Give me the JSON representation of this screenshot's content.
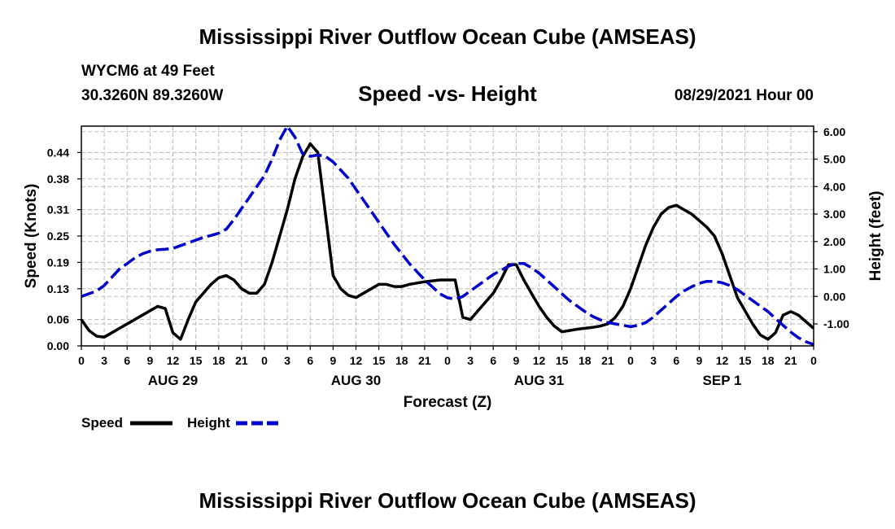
{
  "header": {
    "title": "Mississippi River Outflow Ocean Cube (AMSEAS)",
    "station": "WYCM6 at 49 Feet",
    "coords": "30.3260N  89.3260W",
    "datetime": "08/29/2021 Hour 00"
  },
  "footer": {
    "title": "Mississippi River Outflow Ocean Cube (AMSEAS)"
  },
  "legend": {
    "speed_label": "Speed",
    "height_label": "Height"
  },
  "colors": {
    "speed": "#000000",
    "height": "#0000cc",
    "grid": "#bbbbbb"
  },
  "chart_data": {
    "type": "line",
    "title": "Speed -vs- Height",
    "xlabel": "Forecast (Z)",
    "ylabel": "Speed (Knots)",
    "y2label": "Height (feet)",
    "xlim": [
      0,
      96
    ],
    "ylim": [
      0,
      0.5
    ],
    "y2lim": [
      -1.8,
      6.2
    ],
    "x_ticks": [
      0,
      3,
      6,
      9,
      12,
      15,
      18,
      21,
      24,
      27,
      30,
      33,
      36,
      39,
      42,
      45,
      48,
      51,
      54,
      57,
      60,
      63,
      66,
      69,
      72,
      75,
      78,
      81,
      84,
      87,
      90,
      93,
      96
    ],
    "x_tick_labels": [
      "0",
      "3",
      "6",
      "9",
      "12",
      "15",
      "18",
      "21",
      "0",
      "3",
      "6",
      "9",
      "12",
      "15",
      "18",
      "21",
      "0",
      "3",
      "6",
      "9",
      "12",
      "15",
      "18",
      "21",
      "0",
      "3",
      "6",
      "9",
      "12",
      "15",
      "18",
      "21",
      "0"
    ],
    "date_labels": [
      {
        "label": "AUG 29",
        "x": 12
      },
      {
        "label": "AUG 30",
        "x": 36
      },
      {
        "label": "AUG 31",
        "x": 60
      },
      {
        "label": "SEP 1",
        "x": 84
      }
    ],
    "y_ticks": [
      0.0,
      0.06,
      0.13,
      0.19,
      0.25,
      0.31,
      0.38,
      0.44
    ],
    "y_tick_labels": [
      "0.00",
      "0.06",
      "0.13",
      "0.19",
      "0.25",
      "0.31",
      "0.38",
      "0.44"
    ],
    "y2_ticks": [
      -1,
      0,
      1,
      2,
      3,
      4,
      5,
      6
    ],
    "y2_tick_labels": [
      "-1.00",
      "0.00",
      "1.00",
      "2.00",
      "3.00",
      "4.00",
      "5.00",
      "6.00"
    ],
    "series": [
      {
        "name": "Speed",
        "axis": "left",
        "x": [
          0,
          1,
          2,
          3,
          4,
          5,
          6,
          7,
          8,
          9,
          10,
          11,
          12,
          13,
          14,
          15,
          16,
          17,
          18,
          19,
          20,
          21,
          22,
          23,
          24,
          25,
          26,
          27,
          28,
          29,
          30,
          31,
          32,
          33,
          34,
          35,
          36,
          37,
          38,
          39,
          40,
          41,
          42,
          43,
          44,
          45,
          46,
          47,
          48,
          49,
          50,
          51,
          52,
          53,
          54,
          55,
          56,
          57,
          58,
          59,
          60,
          61,
          62,
          63,
          64,
          65,
          66,
          67,
          68,
          69,
          70,
          71,
          72,
          73,
          74,
          75,
          76,
          77,
          78,
          79,
          80,
          81,
          82,
          83,
          84,
          85,
          86,
          87,
          88,
          89,
          90,
          91,
          92,
          93,
          94,
          95,
          96
        ],
        "values": [
          0.06,
          0.035,
          0.022,
          0.02,
          0.03,
          0.04,
          0.05,
          0.06,
          0.07,
          0.08,
          0.09,
          0.085,
          0.03,
          0.015,
          0.06,
          0.1,
          0.12,
          0.14,
          0.155,
          0.16,
          0.15,
          0.13,
          0.12,
          0.12,
          0.14,
          0.19,
          0.25,
          0.31,
          0.38,
          0.43,
          0.46,
          0.44,
          0.3,
          0.16,
          0.13,
          0.115,
          0.11,
          0.12,
          0.13,
          0.14,
          0.14,
          0.135,
          0.135,
          0.14,
          0.143,
          0.146,
          0.148,
          0.15,
          0.15,
          0.15,
          0.065,
          0.06,
          0.08,
          0.1,
          0.12,
          0.15,
          0.185,
          0.185,
          0.15,
          0.12,
          0.09,
          0.065,
          0.045,
          0.032,
          0.035,
          0.038,
          0.04,
          0.042,
          0.045,
          0.05,
          0.065,
          0.09,
          0.13,
          0.18,
          0.23,
          0.27,
          0.3,
          0.315,
          0.32,
          0.31,
          0.3,
          0.285,
          0.27,
          0.25,
          0.21,
          0.16,
          0.11,
          0.08,
          0.05,
          0.025,
          0.015,
          0.03,
          0.07,
          0.078,
          0.07,
          0.055,
          0.04
        ]
      },
      {
        "name": "Height",
        "axis": "right",
        "x": [
          0,
          1,
          2,
          3,
          4,
          5,
          6,
          7,
          8,
          9,
          10,
          11,
          12,
          13,
          14,
          15,
          16,
          17,
          18,
          19,
          20,
          21,
          22,
          23,
          24,
          25,
          26,
          27,
          28,
          29,
          30,
          31,
          32,
          33,
          34,
          35,
          36,
          37,
          38,
          39,
          40,
          41,
          42,
          43,
          44,
          45,
          46,
          47,
          48,
          49,
          50,
          51,
          52,
          53,
          54,
          55,
          56,
          57,
          58,
          59,
          60,
          61,
          62,
          63,
          64,
          65,
          66,
          67,
          68,
          69,
          70,
          71,
          72,
          73,
          74,
          75,
          76,
          77,
          78,
          79,
          80,
          81,
          82,
          83,
          84,
          85,
          86,
          87,
          88,
          89,
          90,
          91,
          92,
          93,
          94,
          95,
          96
        ],
        "values": [
          0.0,
          0.1,
          0.2,
          0.4,
          0.7,
          1.0,
          1.2,
          1.4,
          1.55,
          1.65,
          1.7,
          1.72,
          1.75,
          1.85,
          1.95,
          2.05,
          2.15,
          2.22,
          2.3,
          2.45,
          2.8,
          3.2,
          3.6,
          4.0,
          4.4,
          5.0,
          5.7,
          6.2,
          5.8,
          5.2,
          5.1,
          5.15,
          5.1,
          4.9,
          4.6,
          4.3,
          3.9,
          3.5,
          3.1,
          2.7,
          2.3,
          1.9,
          1.55,
          1.2,
          0.9,
          0.6,
          0.35,
          0.1,
          -0.05,
          -0.1,
          0.0,
          0.2,
          0.4,
          0.6,
          0.8,
          0.95,
          1.1,
          1.2,
          1.2,
          1.05,
          0.85,
          0.6,
          0.35,
          0.1,
          -0.15,
          -0.35,
          -0.55,
          -0.72,
          -0.85,
          -0.95,
          -1.0,
          -1.05,
          -1.1,
          -1.05,
          -0.95,
          -0.75,
          -0.5,
          -0.25,
          0.0,
          0.2,
          0.35,
          0.48,
          0.55,
          0.55,
          0.5,
          0.4,
          0.25,
          0.05,
          -0.15,
          -0.35,
          -0.55,
          -0.8,
          -1.05,
          -1.3,
          -1.5,
          -1.65,
          -1.75
        ]
      }
    ]
  }
}
